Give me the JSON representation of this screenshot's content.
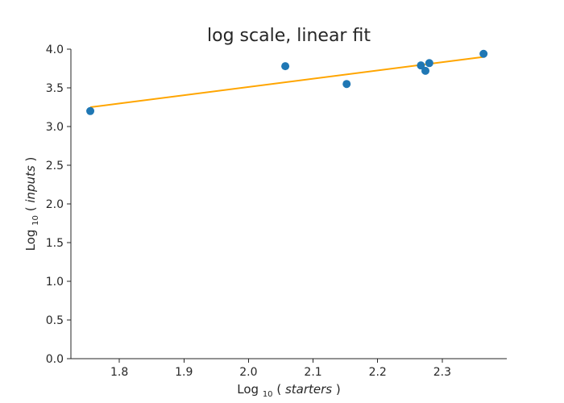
{
  "chart_data": {
    "type": "scatter",
    "title": "log scale, linear fit",
    "xlabel": {
      "prefix": "Log",
      "subscript": "10",
      "variable": "starters"
    },
    "ylabel": {
      "prefix": "Log",
      "subscript": "10",
      "variable": "inputs"
    },
    "xlim": [
      1.725,
      2.4
    ],
    "ylim": [
      0.0,
      4.0
    ],
    "xticks": [
      "1.8",
      "1.9",
      "2.0",
      "2.1",
      "2.2",
      "2.3"
    ],
    "yticks": [
      "0.0",
      "0.5",
      "1.0",
      "1.5",
      "2.0",
      "2.5",
      "3.0",
      "3.5",
      "4.0"
    ],
    "grid": false,
    "legend": "none",
    "colors": {
      "points": "#1f77b4",
      "fit": "#ffa500",
      "axes": "#262626"
    },
    "series": [
      {
        "kind": "scatter",
        "x": [
          1.755,
          2.057,
          2.152,
          2.267,
          2.274,
          2.28,
          2.364
        ],
        "y": [
          3.2,
          3.78,
          3.55,
          3.79,
          3.72,
          3.82,
          3.94
        ]
      },
      {
        "kind": "line",
        "x": [
          1.755,
          2.364
        ],
        "y": [
          3.25,
          3.9
        ]
      }
    ]
  }
}
